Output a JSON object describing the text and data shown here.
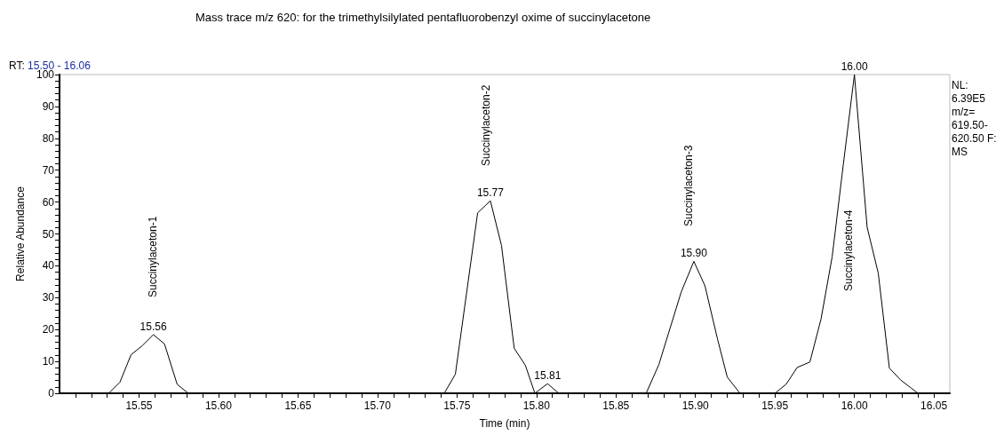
{
  "chart_data": {
    "type": "line",
    "title": "Mass trace m/z 620: for the trimethylsilylated pentafluorobenzyl oxime of succinylacetone",
    "xlabel": "Time (min)",
    "ylabel": "Relative Abundance",
    "x": [
      15.5,
      15.531,
      15.538,
      15.545,
      15.552,
      15.559,
      15.566,
      15.574,
      15.581,
      15.742,
      15.749,
      15.763,
      15.771,
      15.778,
      15.786,
      15.793,
      15.799,
      15.807,
      15.814,
      15.869,
      15.877,
      15.891,
      15.899,
      15.906,
      15.914,
      15.92,
      15.928,
      15.95,
      15.957,
      15.964,
      15.972,
      15.979,
      15.986,
      15.993,
      16.0,
      16.008,
      16.015,
      16.022,
      16.029,
      16.035,
      16.04,
      16.06
    ],
    "series": [
      {
        "color": "#000000",
        "values": [
          0,
          0,
          3.5,
          12.1,
          14.9,
          18.4,
          15.5,
          2.8,
          0,
          0,
          6.0,
          56.6,
          60.4,
          46.4,
          14.1,
          8.8,
          0,
          3.0,
          0,
          0,
          9.0,
          31.7,
          41.4,
          33.7,
          16.8,
          5.1,
          0,
          0,
          2.8,
          8.1,
          9.8,
          23.3,
          42.8,
          71.7,
          100,
          52.1,
          37.7,
          7.9,
          4.2,
          1.9,
          0,
          0
        ]
      }
    ],
    "xlim": [
      15.5,
      16.06
    ],
    "xticks": [
      {
        "value": 15.51,
        "label": null
      },
      {
        "value": 15.52,
        "label": null
      },
      {
        "value": 15.53,
        "label": null
      },
      {
        "value": 15.54,
        "label": null
      },
      {
        "value": 15.55,
        "label": "15.55"
      },
      {
        "value": 15.56,
        "label": null
      },
      {
        "value": 15.57,
        "label": null
      },
      {
        "value": 15.58,
        "label": null
      },
      {
        "value": 15.59,
        "label": null
      },
      {
        "value": 15.6,
        "label": "15.60"
      },
      {
        "value": 15.61,
        "label": null
      },
      {
        "value": 15.62,
        "label": null
      },
      {
        "value": 15.63,
        "label": null
      },
      {
        "value": 15.64,
        "label": null
      },
      {
        "value": 15.65,
        "label": "15.65"
      },
      {
        "value": 15.66,
        "label": null
      },
      {
        "value": 15.67,
        "label": null
      },
      {
        "value": 15.68,
        "label": null
      },
      {
        "value": 15.69,
        "label": null
      },
      {
        "value": 15.7,
        "label": "15.70"
      },
      {
        "value": 15.71,
        "label": null
      },
      {
        "value": 15.72,
        "label": null
      },
      {
        "value": 15.73,
        "label": null
      },
      {
        "value": 15.74,
        "label": null
      },
      {
        "value": 15.75,
        "label": "15.75"
      },
      {
        "value": 15.76,
        "label": null
      },
      {
        "value": 15.77,
        "label": null
      },
      {
        "value": 15.78,
        "label": null
      },
      {
        "value": 15.79,
        "label": null
      },
      {
        "value": 15.8,
        "label": "15.80"
      },
      {
        "value": 15.81,
        "label": null
      },
      {
        "value": 15.82,
        "label": null
      },
      {
        "value": 15.83,
        "label": null
      },
      {
        "value": 15.84,
        "label": null
      },
      {
        "value": 15.85,
        "label": "15.85"
      },
      {
        "value": 15.86,
        "label": null
      },
      {
        "value": 15.87,
        "label": null
      },
      {
        "value": 15.88,
        "label": null
      },
      {
        "value": 15.89,
        "label": null
      },
      {
        "value": 15.9,
        "label": "15.90"
      },
      {
        "value": 15.91,
        "label": null
      },
      {
        "value": 15.92,
        "label": null
      },
      {
        "value": 15.93,
        "label": null
      },
      {
        "value": 15.94,
        "label": null
      },
      {
        "value": 15.95,
        "label": "15.95"
      },
      {
        "value": 15.96,
        "label": null
      },
      {
        "value": 15.97,
        "label": null
      },
      {
        "value": 15.98,
        "label": null
      },
      {
        "value": 15.99,
        "label": null
      },
      {
        "value": 16.0,
        "label": "16.00"
      },
      {
        "value": 16.01,
        "label": null
      },
      {
        "value": 16.02,
        "label": null
      },
      {
        "value": 16.03,
        "label": null
      },
      {
        "value": 16.04,
        "label": null
      },
      {
        "value": 16.05,
        "label": "16.05"
      }
    ],
    "ylim": [
      0,
      100
    ],
    "yticks": [
      0,
      {
        "value": 2,
        "label": null
      },
      {
        "value": 4,
        "label": null
      },
      {
        "value": 6,
        "label": null
      },
      {
        "value": 8,
        "label": null
      },
      10,
      {
        "value": 12,
        "label": null
      },
      {
        "value": 14,
        "label": null
      },
      {
        "value": 16,
        "label": null
      },
      {
        "value": 18,
        "label": null
      },
      20,
      {
        "value": 22,
        "label": null
      },
      {
        "value": 24,
        "label": null
      },
      {
        "value": 26,
        "label": null
      },
      {
        "value": 28,
        "label": null
      },
      30,
      {
        "value": 32,
        "label": null
      },
      {
        "value": 34,
        "label": null
      },
      {
        "value": 36,
        "label": null
      },
      {
        "value": 38,
        "label": null
      },
      40,
      {
        "value": 42,
        "label": null
      },
      {
        "value": 44,
        "label": null
      },
      {
        "value": 46,
        "label": null
      },
      {
        "value": 48,
        "label": null
      },
      50,
      {
        "value": 52,
        "label": null
      },
      {
        "value": 54,
        "label": null
      },
      {
        "value": 56,
        "label": null
      },
      {
        "value": 58,
        "label": null
      },
      60,
      {
        "value": 62,
        "label": null
      },
      {
        "value": 64,
        "label": null
      },
      {
        "value": 66,
        "label": null
      },
      {
        "value": 68,
        "label": null
      },
      70,
      {
        "value": 72,
        "label": null
      },
      {
        "value": 74,
        "label": null
      },
      {
        "value": 76,
        "label": null
      },
      {
        "value": 78,
        "label": null
      },
      80,
      {
        "value": 82,
        "label": null
      },
      {
        "value": 84,
        "label": null
      },
      {
        "value": 86,
        "label": null
      },
      {
        "value": 88,
        "label": null
      },
      90,
      {
        "value": 92,
        "label": null
      },
      {
        "value": 94,
        "label": null
      },
      {
        "value": 96,
        "label": null
      },
      {
        "value": 98,
        "label": null
      },
      100
    ],
    "grid": false,
    "marker": "none",
    "line_style": "solid",
    "annotations": [
      "RT: 15.50 - 16.06",
      "NL:\n6.39E5\nm/z=\n619.50-\n620.50 F:\nMS",
      "Succinylaceton-1",
      "Succinylaceton-2",
      "Succinylaceton-3",
      "Succinylaceton-4",
      {
        "text": "15.56",
        "x": 15.559,
        "y": 18.4
      },
      {
        "text": "15.77",
        "x": 15.771,
        "y": 60.4
      },
      {
        "text": "15.81",
        "x": 15.807,
        "y": 3.0
      },
      {
        "text": "15.90",
        "x": 15.899,
        "y": 41.4
      },
      {
        "text": "16.00",
        "x": 16.0,
        "y": 100
      }
    ]
  }
}
